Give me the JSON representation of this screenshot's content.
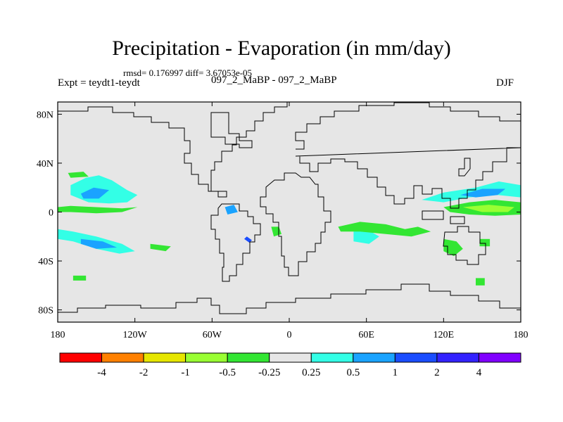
{
  "chart_data": {
    "type": "heatmap",
    "title": "Precipitation - Evaporation (in mm/day)",
    "stats": "rmsd= 0.176997 diff= 3.67053e-05",
    "left_label": "Expt = teydt1-teydt",
    "center_label": "097_2_MaBP - 097_2_MaBP",
    "right_label": "DJF",
    "xlim": [
      -180,
      180
    ],
    "ylim": [
      -90,
      90
    ],
    "x_ticks": [
      {
        "value": -180,
        "label": "180"
      },
      {
        "value": -120,
        "label": "120W"
      },
      {
        "value": -60,
        "label": "60W"
      },
      {
        "value": 0,
        "label": "0"
      },
      {
        "value": 60,
        "label": "60E"
      },
      {
        "value": 120,
        "label": "120E"
      },
      {
        "value": 180,
        "label": "180"
      }
    ],
    "y_ticks": [
      {
        "value": 80,
        "label": "80N"
      },
      {
        "value": 40,
        "label": "40N"
      },
      {
        "value": 0,
        "label": "0"
      },
      {
        "value": -40,
        "label": "40S"
      },
      {
        "value": -80,
        "label": "80S"
      }
    ],
    "colorbar": {
      "colors": [
        "#ff0000",
        "#ff8000",
        "#e6e600",
        "#99ff33",
        "#33e633",
        "#e6e6e6",
        "#33ffe6",
        "#1aa3ff",
        "#1a4dff",
        "#3322ff",
        "#8000ff"
      ],
      "labels": [
        "-4",
        "-2",
        "-1",
        "-0.5",
        "-0.25",
        "0.25",
        "0.5",
        "1",
        "2",
        "4"
      ]
    },
    "background_color": "#e6e6e6",
    "regions": [
      {
        "level": "0.25 to 0.5",
        "color": "#33ffe6",
        "polygon": [
          [
            -170,
            22
          ],
          [
            -158,
            28
          ],
          [
            -148,
            30
          ],
          [
            -138,
            26
          ],
          [
            -126,
            18
          ],
          [
            -118,
            14
          ],
          [
            -126,
            8
          ],
          [
            -140,
            7
          ],
          [
            -156,
            8
          ],
          [
            -170,
            14
          ]
        ]
      },
      {
        "level": "0.5 to 1",
        "color": "#1aa3ff",
        "polygon": [
          [
            -162,
            15
          ],
          [
            -152,
            20
          ],
          [
            -140,
            18
          ],
          [
            -148,
            11
          ],
          [
            -160,
            11
          ]
        ]
      },
      {
        "level": "0.25 to 0.5",
        "color": "#33ffe6",
        "polygon": [
          [
            -180,
            -14
          ],
          [
            -168,
            -16
          ],
          [
            -150,
            -20
          ],
          [
            -130,
            -26
          ],
          [
            -120,
            -32
          ],
          [
            -132,
            -34
          ],
          [
            -150,
            -30
          ],
          [
            -168,
            -24
          ],
          [
            -180,
            -22
          ]
        ]
      },
      {
        "level": "0.5 to 1",
        "color": "#1aa3ff",
        "polygon": [
          [
            -162,
            -22
          ],
          [
            -145,
            -24
          ],
          [
            -134,
            -29
          ],
          [
            -150,
            -30
          ],
          [
            -162,
            -26
          ]
        ]
      },
      {
        "level": "0.25 to 0.5",
        "color": "#33ffe6",
        "polygon": [
          [
            103,
            10
          ],
          [
            120,
            16
          ],
          [
            145,
            20
          ],
          [
            163,
            25
          ],
          [
            180,
            22
          ],
          [
            180,
            12
          ],
          [
            162,
            14
          ],
          [
            140,
            12
          ],
          [
            120,
            8
          ]
        ]
      },
      {
        "level": "0.5 to 1",
        "color": "#1aa3ff",
        "polygon": [
          [
            133,
            14
          ],
          [
            150,
            19
          ],
          [
            168,
            19
          ],
          [
            162,
            14
          ],
          [
            145,
            12
          ]
        ]
      },
      {
        "level": "0.25 to 0.5",
        "color": "#33ffe6",
        "polygon": [
          [
            50,
            -16
          ],
          [
            60,
            -14
          ],
          [
            70,
            -20
          ],
          [
            62,
            -26
          ],
          [
            50,
            -24
          ]
        ]
      },
      {
        "level": "0.5 to 1",
        "color": "#1aa3ff",
        "polygon": [
          [
            -50,
            4
          ],
          [
            -43,
            6
          ],
          [
            -40,
            0
          ],
          [
            -48,
            -2
          ]
        ]
      },
      {
        "level": "1 to 2",
        "color": "#1a4dff",
        "polygon": [
          [
            -33,
            -20
          ],
          [
            -29,
            -23
          ],
          [
            -31,
            -25
          ],
          [
            -35,
            -22
          ]
        ]
      },
      {
        "level": "-0.5 to -0.25",
        "color": "#33e633",
        "polygon": [
          [
            -180,
            4
          ],
          [
            -170,
            5
          ],
          [
            -150,
            4
          ],
          [
            -130,
            3
          ],
          [
            -118,
            4
          ],
          [
            -130,
            0
          ],
          [
            -150,
            -1
          ],
          [
            -170,
            0
          ],
          [
            -180,
            0
          ]
        ]
      },
      {
        "level": "-0.5 to -0.25",
        "color": "#33e633",
        "polygon": [
          [
            -172,
            32
          ],
          [
            -160,
            33
          ],
          [
            -156,
            29
          ],
          [
            -170,
            28
          ]
        ]
      },
      {
        "level": "-0.5 to -0.25",
        "color": "#33e633",
        "polygon": [
          [
            120,
            4
          ],
          [
            140,
            8
          ],
          [
            160,
            10
          ],
          [
            180,
            8
          ],
          [
            180,
            -2
          ],
          [
            160,
            -3
          ],
          [
            140,
            -2
          ],
          [
            125,
            0
          ]
        ]
      },
      {
        "level": "-1 to -0.5",
        "color": "#99ff33",
        "polygon": [
          [
            135,
            4
          ],
          [
            155,
            6
          ],
          [
            175,
            4
          ],
          [
            170,
            0
          ],
          [
            150,
            0
          ]
        ]
      },
      {
        "level": "-0.5 to -0.25",
        "color": "#33e633",
        "polygon": [
          [
            38,
            -12
          ],
          [
            55,
            -8
          ],
          [
            75,
            -10
          ],
          [
            90,
            -14
          ],
          [
            100,
            -12
          ],
          [
            110,
            -16
          ],
          [
            95,
            -20
          ],
          [
            75,
            -18
          ],
          [
            55,
            -16
          ],
          [
            40,
            -16
          ]
        ]
      },
      {
        "level": "-0.5 to -0.25",
        "color": "#33e633",
        "polygon": [
          [
            120,
            -22
          ],
          [
            130,
            -24
          ],
          [
            135,
            -30
          ],
          [
            128,
            -36
          ],
          [
            120,
            -32
          ]
        ]
      },
      {
        "level": "-0.5 to -0.25",
        "color": "#33e633",
        "polygon": [
          [
            -14,
            -12
          ],
          [
            -8,
            -12
          ],
          [
            -6,
            -18
          ],
          [
            -12,
            -20
          ]
        ]
      },
      {
        "level": "-0.5 to -0.25",
        "color": "#33e633",
        "polygon": [
          [
            -108,
            -26
          ],
          [
            -92,
            -28
          ],
          [
            -96,
            -32
          ],
          [
            -108,
            -30
          ]
        ]
      },
      {
        "level": "-0.5 to -0.25",
        "color": "#33e633",
        "polygon": [
          [
            -168,
            -52
          ],
          [
            -158,
            -52
          ],
          [
            -158,
            -56
          ],
          [
            -168,
            -56
          ]
        ]
      },
      {
        "level": "-0.5 to -0.25",
        "color": "#33e633",
        "polygon": [
          [
            145,
            -54
          ],
          [
            152,
            -54
          ],
          [
            152,
            -60
          ],
          [
            145,
            -60
          ]
        ]
      },
      {
        "level": "-0.5 to -0.25",
        "color": "#33e633",
        "polygon": [
          [
            92,
            -14
          ],
          [
            98,
            -14
          ],
          [
            98,
            -18
          ],
          [
            92,
            -18
          ]
        ]
      },
      {
        "level": "-0.5 to -0.25",
        "color": "#33e633",
        "polygon": [
          [
            148,
            -22
          ],
          [
            156,
            -22
          ],
          [
            156,
            -28
          ],
          [
            148,
            -28
          ]
        ]
      }
    ]
  }
}
